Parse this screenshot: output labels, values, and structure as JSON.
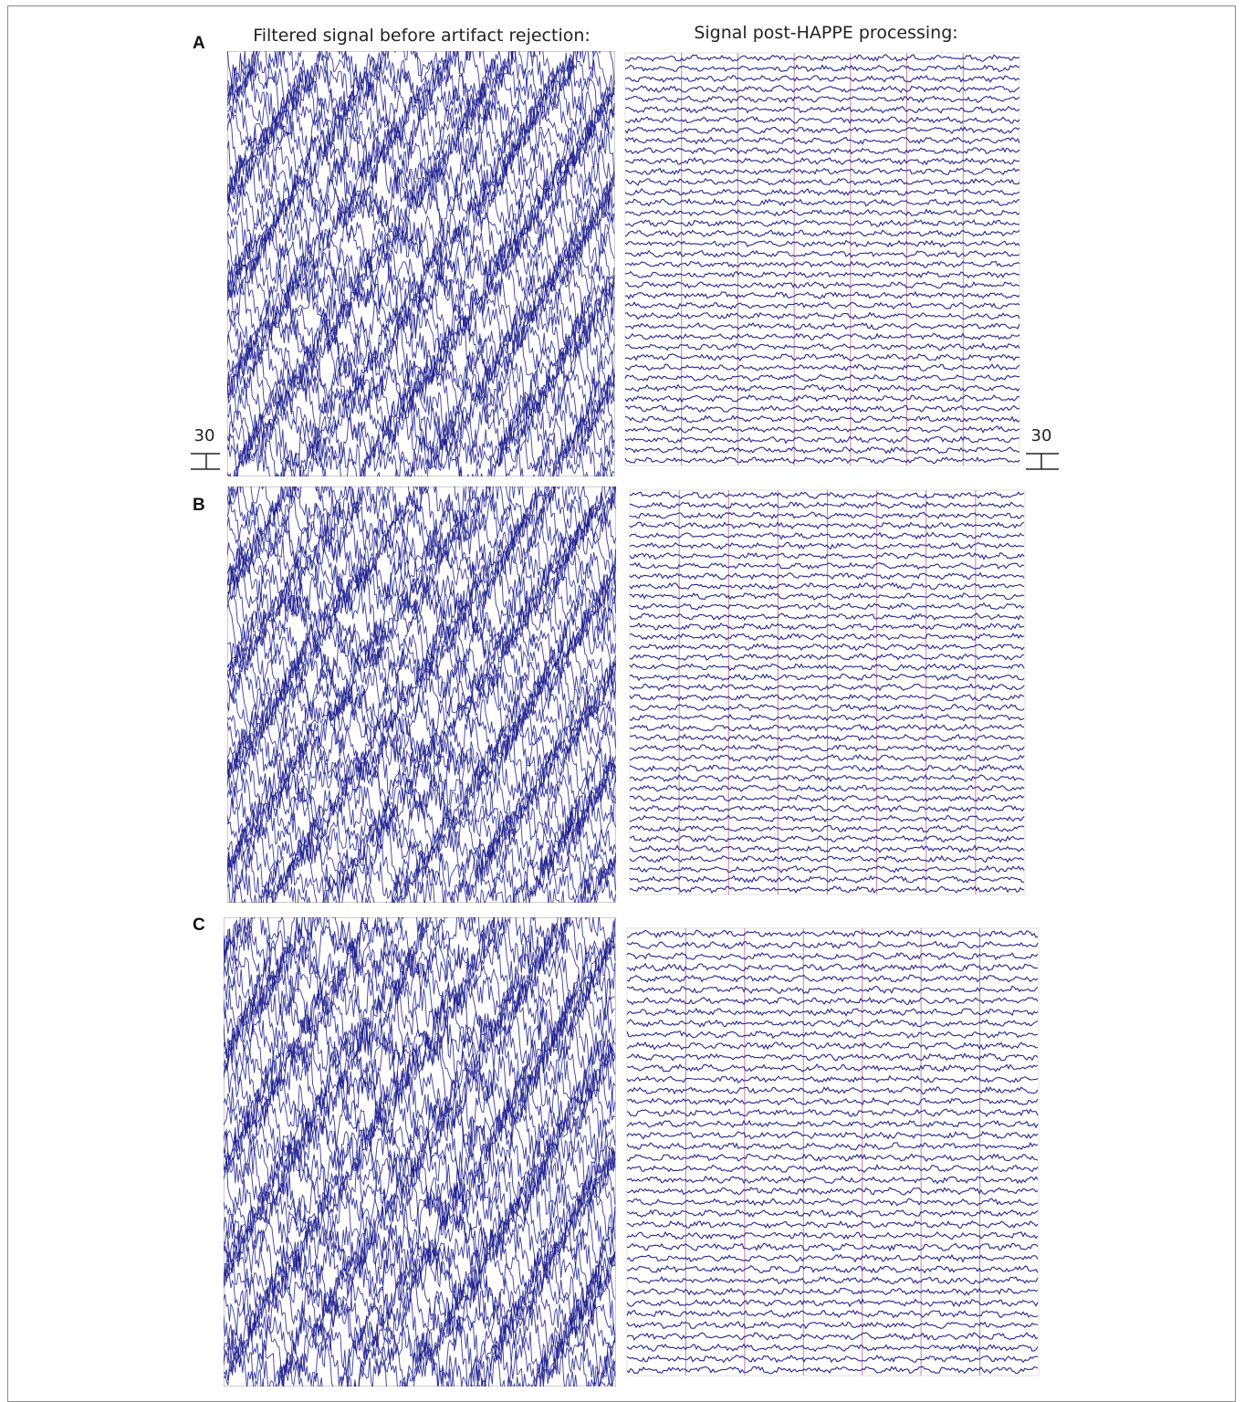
{
  "figure": {
    "left_title": "Filtered signal before artifact rejection:",
    "right_title": "Signal post-HAPPE processing:",
    "scale_label_left": "30",
    "scale_label_right": "30",
    "trace_color": "#1a1a8c",
    "marker_color": "#c77aa0"
  },
  "chart_data": [
    {
      "type": "line",
      "panel": "A",
      "subplots": [
        {
          "title": "Filtered signal before artifact rejection:",
          "channels": 40,
          "condition": "raw"
        },
        {
          "title": "Signal post-HAPPE processing:",
          "channels": 40,
          "condition": "processed",
          "event_markers": 6
        }
      ],
      "scale_bar": "30"
    },
    {
      "type": "line",
      "panel": "B",
      "subplots": [
        {
          "title": "",
          "channels": 40,
          "condition": "raw"
        },
        {
          "title": "",
          "channels": 40,
          "condition": "processed",
          "event_markers": 7
        }
      ]
    },
    {
      "type": "line",
      "panel": "C",
      "subplots": [
        {
          "title": "",
          "channels": 40,
          "condition": "raw"
        },
        {
          "title": "",
          "channels": 40,
          "condition": "processed",
          "event_markers": 6
        }
      ]
    }
  ]
}
